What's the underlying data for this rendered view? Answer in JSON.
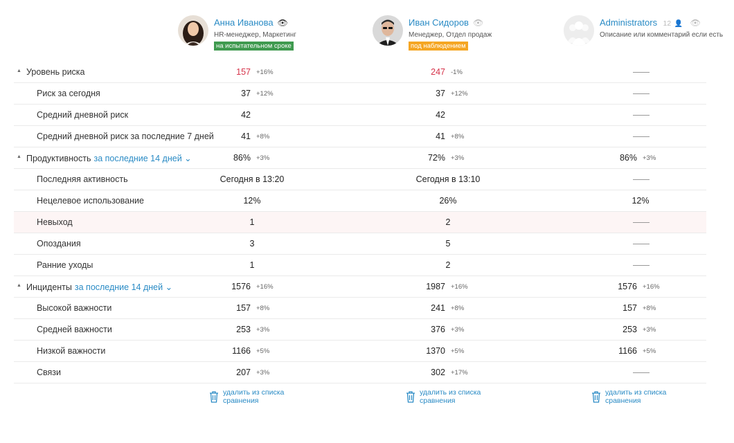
{
  "users": [
    {
      "name": "Анна Иванова",
      "subtitle": "HR-менеджер, Маркетинг",
      "badge": "на испытательном сроке",
      "badge_color": "#3f9a4f",
      "icon": "eye-icon",
      "icon_color": "#333333"
    },
    {
      "name": "Иван Сидоров",
      "subtitle": "Менеджер, Отдел продаж",
      "badge": "под наблюдением",
      "badge_color": "#f5a623",
      "icon": "eye-icon",
      "icon_color": "#bbbbbb"
    },
    {
      "name": "Administrators",
      "count": "12",
      "subtitle": "Описание или комментарий если есть",
      "icon": "eye-icon",
      "icon_color": "#bbbbbb"
    }
  ],
  "sections": {
    "risk": {
      "label": "Уровень риска"
    },
    "productivity": {
      "label": "Продуктивность",
      "period": "за последние 14 дней"
    },
    "incidents": {
      "label": "Инциденты",
      "period": "за последние 14 дней"
    }
  },
  "rows": [
    {
      "label": "Уровень риска",
      "cols": [
        {
          "v": "157",
          "d": "+16%",
          "red": true
        },
        {
          "v": "247",
          "d": "-1%",
          "red": true
        },
        {
          "dash": true
        }
      ]
    },
    {
      "label": "Риск за сегодня",
      "cols": [
        {
          "v": "37",
          "d": "+12%"
        },
        {
          "v": "37",
          "d": "+12%"
        },
        {
          "dash": true
        }
      ]
    },
    {
      "label": "Средний дневной риск",
      "cols": [
        {
          "v": "42"
        },
        {
          "v": "42"
        },
        {
          "dash": true
        }
      ]
    },
    {
      "label": "Средний дневной риск за последние 7 дней",
      "cols": [
        {
          "v": "41",
          "d": "+8%"
        },
        {
          "v": "41",
          "d": "+8%"
        },
        {
          "dash": true
        }
      ]
    },
    {
      "label": "Продуктивность",
      "cols": [
        {
          "v": "86%",
          "d": "+3%"
        },
        {
          "v": "72%",
          "d": "+3%"
        },
        {
          "v": "86%",
          "d": "+3%"
        }
      ]
    },
    {
      "label": "Последняя активность",
      "cols": [
        {
          "v": "Сегодня в 13:20",
          "center": true
        },
        {
          "v": "Сегодня в 13:10",
          "center": true
        },
        {
          "dash": true
        }
      ]
    },
    {
      "label": "Нецелевое использование",
      "cols": [
        {
          "v": "12%",
          "center": true
        },
        {
          "v": "26%",
          "center": true
        },
        {
          "v": "12%",
          "center": true
        }
      ]
    },
    {
      "label": "Невыход",
      "cols": [
        {
          "v": "1",
          "center": true
        },
        {
          "v": "2",
          "center": true
        },
        {
          "dash": true
        }
      ]
    },
    {
      "label": "Опоздания",
      "cols": [
        {
          "v": "3",
          "center": true
        },
        {
          "v": "5",
          "center": true
        },
        {
          "dash": true
        }
      ]
    },
    {
      "label": "Ранние уходы",
      "cols": [
        {
          "v": "1",
          "center": true
        },
        {
          "v": "2",
          "center": true
        },
        {
          "dash": true
        }
      ]
    },
    {
      "label": "Инциденты",
      "cols": [
        {
          "v": "1576",
          "d": "+16%"
        },
        {
          "v": "1987",
          "d": "+16%"
        },
        {
          "v": "1576",
          "d": "+16%"
        }
      ]
    },
    {
      "label": "Высокой важности",
      "cols": [
        {
          "v": "157",
          "d": "+8%"
        },
        {
          "v": "241",
          "d": "+8%"
        },
        {
          "v": "157",
          "d": "+8%"
        }
      ]
    },
    {
      "label": "Средней важности",
      "cols": [
        {
          "v": "253",
          "d": "+3%"
        },
        {
          "v": "376",
          "d": "+3%"
        },
        {
          "v": "253",
          "d": "+3%"
        }
      ]
    },
    {
      "label": "Низкой важности",
      "cols": [
        {
          "v": "1166",
          "d": "+5%"
        },
        {
          "v": "1370",
          "d": "+5%"
        },
        {
          "v": "1166",
          "d": "+5%"
        }
      ]
    },
    {
      "label": "Связи",
      "cols": [
        {
          "v": "207",
          "d": "+3%"
        },
        {
          "v": "302",
          "d": "+17%"
        },
        {
          "dash": true
        }
      ]
    }
  ],
  "footer": {
    "remove_line1": "удалить из списка",
    "remove_line2": "сравнения"
  },
  "colors": {
    "accent": "#2a8bc5",
    "risk_red": "#d6334a"
  }
}
